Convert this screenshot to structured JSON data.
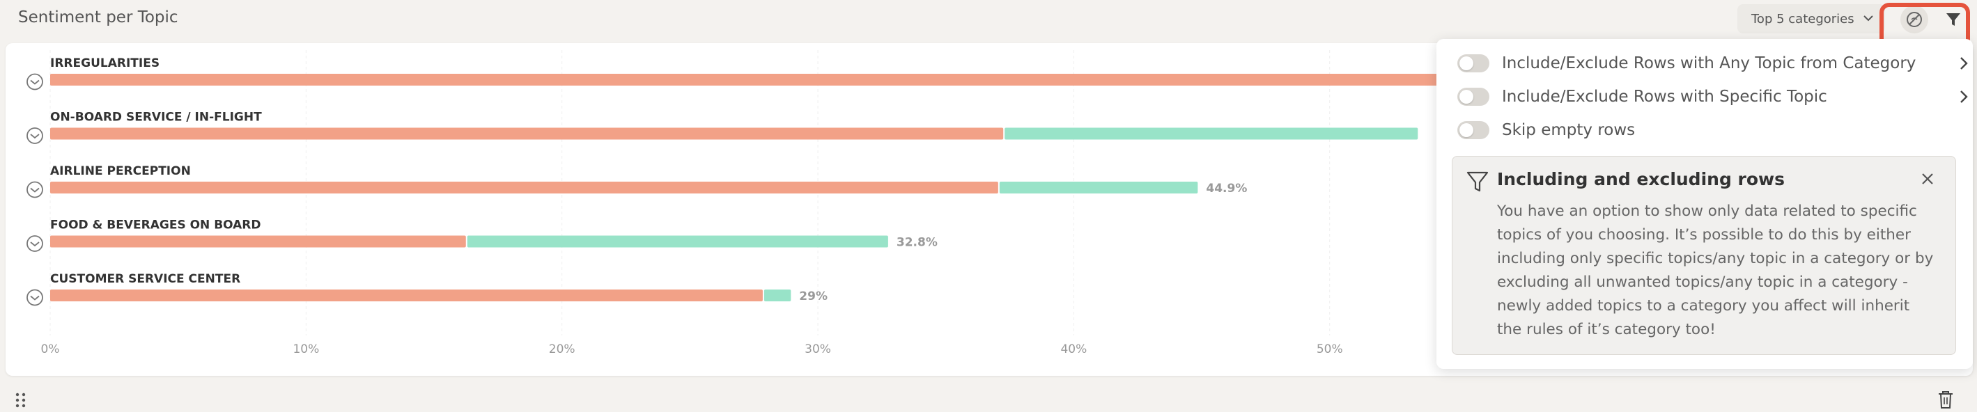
{
  "header": {
    "title": "Sentiment per Topic",
    "top_select": "Top 5 categories"
  },
  "icons": {
    "hide": "eye-off-icon",
    "filter": "filter-icon",
    "drag": "drag-handle-icon",
    "trash": "trash-icon"
  },
  "colors": {
    "negative": "#f2a187",
    "positive": "#98e3c8",
    "highlight": "#e5533c"
  },
  "chart_data": {
    "type": "bar",
    "orientation": "horizontal",
    "stacked": true,
    "categories": [
      "IRREGULARITIES",
      "ON-BOARD SERVICE / IN-FLIGHT",
      "AIRLINE PERCEPTION",
      "FOOD & BEVERAGES ON BOARD",
      "CUSTOMER SERVICE CENTER"
    ],
    "series": [
      {
        "values": [
          56.4,
          37.3,
          37.1,
          16.3,
          27.9
        ]
      },
      {
        "values": [
          0,
          16.2,
          7.8,
          16.5,
          1.1
        ]
      }
    ],
    "total_labels": [
      "",
      "",
      "44.9%",
      "32.8%",
      "29%"
    ],
    "x_ticks": [
      "0%",
      "10%",
      "20%",
      "30%",
      "40%",
      "50%"
    ],
    "xlim": [
      0,
      73.5
    ],
    "grid": true
  },
  "filter_popup": {
    "options": [
      {
        "label": "Include/Exclude Rows with Any Topic from Category"
      },
      {
        "label": "Include/Exclude Rows with Specific Topic"
      },
      {
        "label": "Skip empty rows"
      }
    ],
    "info_title": "Including and excluding rows",
    "info_body": "You have an option to show only data related to specific topics of you choosing. It’s possible to do this by either including only specific topics/any topic in a category or by excluding all unwanted topics/any topic in a category - newly added topics to a category you affect will inherit the rules of it’s category too!"
  }
}
